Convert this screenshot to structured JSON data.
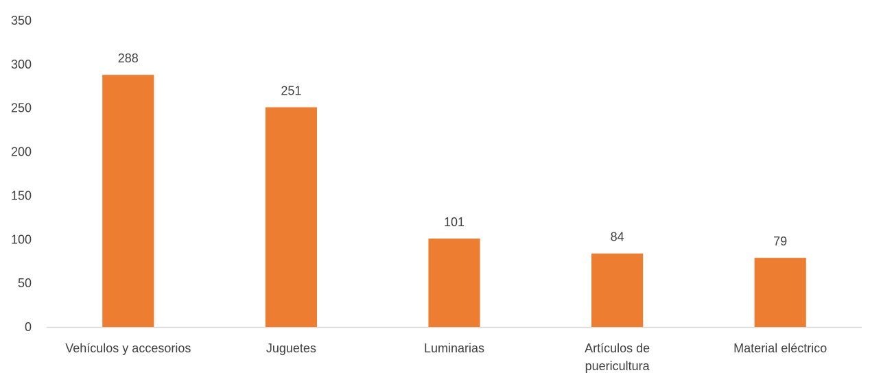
{
  "chart_data": {
    "type": "bar",
    "title": "",
    "xlabel": "",
    "ylabel": "",
    "categories": [
      [
        "Vehículos y accesorios"
      ],
      [
        "Juguetes"
      ],
      [
        "Luminarias"
      ],
      [
        "Artículos de",
        "puericultura"
      ],
      [
        "Material eléctrico"
      ]
    ],
    "values": [
      288,
      251,
      101,
      84,
      79
    ],
    "ylim": [
      0,
      350
    ],
    "yticks": [
      0,
      50,
      100,
      150,
      200,
      250,
      300,
      350
    ],
    "grid": false,
    "legend": "none",
    "bar_color": "#ED7D31",
    "axis_color": "#D9D9D9",
    "text_color": "#404040"
  }
}
